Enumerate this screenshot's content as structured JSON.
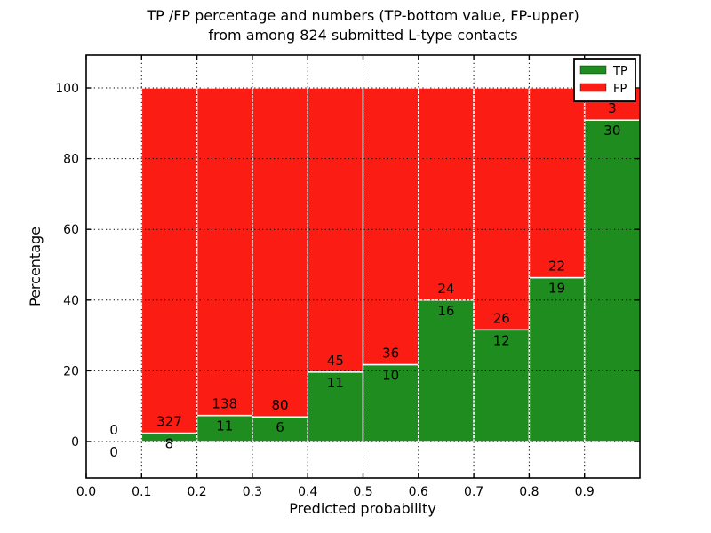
{
  "figure": {
    "title_line1": "TP /FP percentage and numbers (TP-bottom value, FP-upper)",
    "title_line2": "from among 824 submitted L-type contacts"
  },
  "axes": {
    "xlabel": "Predicted probability",
    "ylabel": "Percentage",
    "x_tick_values": [
      0.0,
      0.1,
      0.2,
      0.3,
      0.4,
      0.5,
      0.6,
      0.7,
      0.8,
      0.9
    ],
    "x_tick_labels": [
      "0.0",
      "0.1",
      "0.2",
      "0.3",
      "0.4",
      "0.5",
      "0.6",
      "0.7",
      "0.8",
      "0.9"
    ],
    "y_tick_values": [
      0,
      20,
      40,
      60,
      80,
      100
    ],
    "y_tick_labels": [
      "0",
      "20",
      "40",
      "60",
      "80",
      "100"
    ]
  },
  "legend": {
    "items": [
      {
        "label": "TP",
        "color": "#1e8c1e"
      },
      {
        "label": "FP",
        "color": "#fb1c14"
      }
    ]
  },
  "chart_data": {
    "type": "bar",
    "stacked": true,
    "title": "TP /FP percentage and numbers (TP-bottom value, FP-upper) from among 824 submitted L-type contacts",
    "xlabel": "Predicted probability",
    "ylabel": "Percentage",
    "total_submitted": 824,
    "bin_edges": [
      0.0,
      0.1,
      0.2,
      0.3,
      0.4,
      0.5,
      0.6,
      0.7,
      0.8,
      0.9,
      1.0
    ],
    "series": [
      {
        "name": "TP",
        "color": "#1e8c1e",
        "counts": [
          0,
          8,
          11,
          6,
          11,
          10,
          16,
          12,
          19,
          30
        ],
        "percent_of_bin": [
          0,
          2.4,
          7.4,
          7.0,
          19.6,
          21.7,
          40.0,
          31.6,
          46.3,
          90.9
        ]
      },
      {
        "name": "FP",
        "color": "#fb1c14",
        "counts": [
          0,
          327,
          138,
          80,
          45,
          36,
          24,
          26,
          22,
          3
        ],
        "percent_of_bin": [
          0,
          97.6,
          92.6,
          93.0,
          80.4,
          78.3,
          60.0,
          68.4,
          53.7,
          9.1
        ]
      }
    ],
    "bar_label_rule": "TP count below stack boundary, FP count above stack boundary; both 0 labels shown for empty first bin",
    "xlim": [
      0.0,
      1.0
    ],
    "ylim_percent": [
      0,
      100
    ],
    "grid": true,
    "grid_linestyle": "dotted",
    "legend_position": "upper right"
  }
}
